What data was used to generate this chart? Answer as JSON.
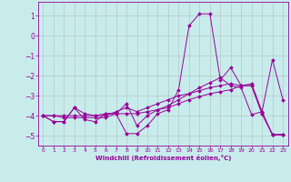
{
  "xlabel": "Windchill (Refroidissement éolien,°C)",
  "background_color": "#c8ecec",
  "line_color": "#990099",
  "grid_color": "#aaaaaa",
  "xlim": [
    -0.5,
    23.5
  ],
  "ylim": [
    -5.5,
    1.7
  ],
  "yticks": [
    1,
    0,
    -1,
    -2,
    -3,
    -4,
    -5
  ],
  "xticks": [
    0,
    1,
    2,
    3,
    4,
    5,
    6,
    7,
    8,
    9,
    10,
    11,
    12,
    13,
    14,
    15,
    16,
    17,
    18,
    19,
    20,
    21,
    22,
    23
  ],
  "series": [
    [
      -4.0,
      -4.3,
      -4.3,
      -3.6,
      -4.2,
      -4.3,
      -3.9,
      -3.9,
      -4.9,
      -4.9,
      -4.5,
      -3.9,
      -3.7,
      -2.7,
      0.5,
      1.1,
      1.1,
      -2.2,
      -1.6,
      -2.5,
      -2.4,
      -3.8,
      -1.2,
      -3.2
    ],
    [
      -4.0,
      -4.3,
      -4.3,
      -3.6,
      -3.9,
      -4.0,
      -3.9,
      -3.9,
      -3.4,
      -4.5,
      -4.0,
      -3.7,
      -3.5,
      -3.2,
      -2.9,
      -2.6,
      -2.35,
      -2.1,
      -2.5,
      -2.6,
      -3.95,
      -3.8,
      -4.95,
      -4.95
    ],
    [
      -4.0,
      -4.0,
      -4.0,
      -4.0,
      -4.0,
      -4.0,
      -4.0,
      -3.8,
      -3.6,
      -3.8,
      -3.6,
      -3.4,
      -3.2,
      -3.0,
      -2.9,
      -2.75,
      -2.6,
      -2.5,
      -2.4,
      -2.5,
      -2.5,
      -3.9,
      -4.95,
      -4.95
    ],
    [
      -4.0,
      -4.0,
      -4.1,
      -4.1,
      -4.1,
      -4.1,
      -4.1,
      -3.9,
      -3.9,
      -3.9,
      -3.8,
      -3.7,
      -3.6,
      -3.4,
      -3.2,
      -3.05,
      -2.9,
      -2.8,
      -2.7,
      -2.5,
      -2.5,
      -3.9,
      -4.95,
      -4.95
    ]
  ]
}
